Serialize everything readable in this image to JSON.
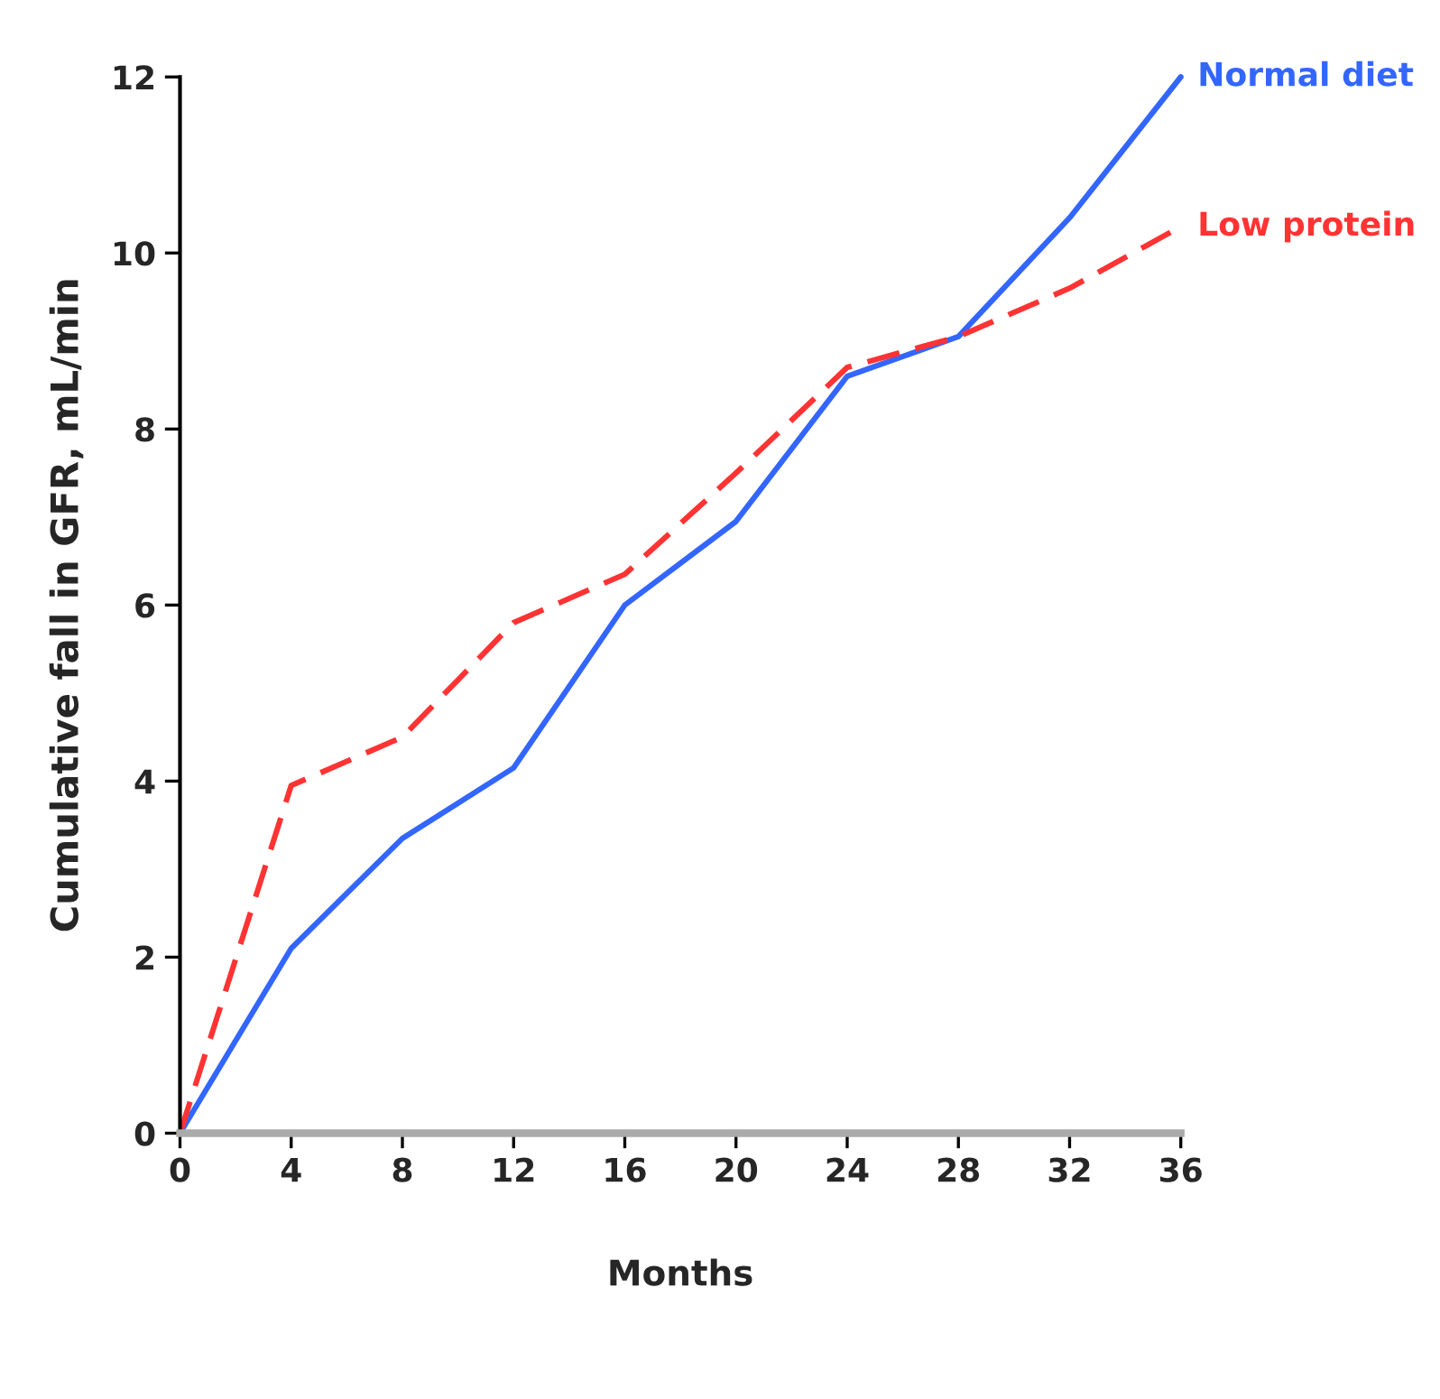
{
  "chart_data": {
    "type": "line",
    "xlabel": "Months",
    "ylabel": "Cumulative fall in GFR, mL/min",
    "x": [
      0,
      4,
      8,
      12,
      16,
      20,
      24,
      28,
      32,
      36
    ],
    "series": [
      {
        "name": "Normal diet",
        "color": "#3366ff",
        "line_style": "solid",
        "values": [
          0,
          2.1,
          3.35,
          4.15,
          6.0,
          6.95,
          8.6,
          9.05,
          10.4,
          12.0
        ]
      },
      {
        "name": "Low protein",
        "color": "#ff3333",
        "line_style": "dashed",
        "values": [
          0,
          3.95,
          4.5,
          5.8,
          6.35,
          7.5,
          8.7,
          9.05,
          9.6,
          10.3
        ]
      }
    ],
    "xlim": [
      0,
      36
    ],
    "ylim": [
      0,
      12
    ],
    "xticks": [
      0,
      4,
      8,
      12,
      16,
      20,
      24,
      28,
      32,
      36
    ],
    "yticks": [
      0,
      2,
      4,
      6,
      8,
      10,
      12
    ],
    "grid": false,
    "legend": false,
    "marker": "none"
  }
}
